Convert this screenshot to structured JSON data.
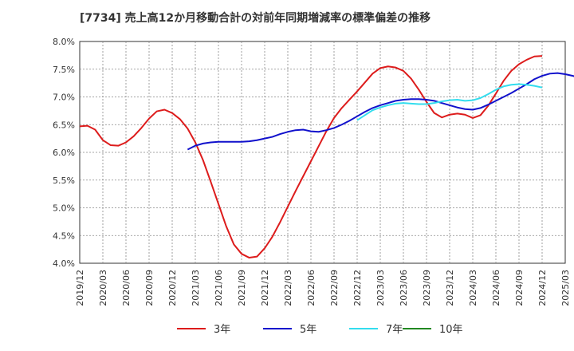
{
  "chart_data": {
    "type": "line",
    "title": "[7734]  売上高12か月移動合計の対前年同期増減率の標準偏差の推移",
    "ylim": [
      4.0,
      8.0
    ],
    "y_ticks": [
      "4.0%",
      "4.5%",
      "5.0%",
      "5.5%",
      "6.0%",
      "6.5%",
      "7.0%",
      "7.5%",
      "8.0%"
    ],
    "x_ticks": [
      "2019/12",
      "2020/03",
      "2020/06",
      "2020/09",
      "2020/12",
      "2021/03",
      "2021/06",
      "2021/09",
      "2021/12",
      "2022/03",
      "2022/06",
      "2022/09",
      "2022/12",
      "2023/03",
      "2023/06",
      "2023/09",
      "2023/12",
      "2024/03",
      "2024/06",
      "2024/09",
      "2024/12",
      "2025/03"
    ],
    "grid": true,
    "legend_position": "bottom",
    "series": [
      {
        "name": "3年",
        "color": "#dd1c1c",
        "start": "2019/12",
        "values": [
          6.47,
          6.48,
          6.41,
          6.22,
          6.13,
          6.12,
          6.18,
          6.29,
          6.44,
          6.61,
          6.74,
          6.77,
          6.71,
          6.6,
          6.43,
          6.18,
          5.86,
          5.47,
          5.07,
          4.67,
          4.34,
          4.17,
          4.1,
          4.12,
          4.27,
          4.48,
          4.74,
          5.02,
          5.3,
          5.57,
          5.84,
          6.11,
          6.38,
          6.62,
          6.8,
          6.95,
          7.1,
          7.26,
          7.42,
          7.52,
          7.55,
          7.53,
          7.47,
          7.33,
          7.13,
          6.91,
          6.71,
          6.63,
          6.68,
          6.7,
          6.68,
          6.62,
          6.67,
          6.84,
          7.06,
          7.29,
          7.47,
          7.59,
          7.67,
          7.73,
          7.74
        ]
      },
      {
        "name": "5年",
        "color": "#1111cc",
        "start": "2021/02",
        "values": [
          6.05,
          6.12,
          6.16,
          6.18,
          6.19,
          6.19,
          6.19,
          6.19,
          6.2,
          6.22,
          6.25,
          6.28,
          6.33,
          6.37,
          6.4,
          6.41,
          6.38,
          6.37,
          6.4,
          6.44,
          6.5,
          6.57,
          6.65,
          6.73,
          6.8,
          6.85,
          6.89,
          6.93,
          6.95,
          6.96,
          6.96,
          6.95,
          6.93,
          6.89,
          6.85,
          6.81,
          6.78,
          6.77,
          6.8,
          6.86,
          6.93,
          7.0,
          7.07,
          7.15,
          7.23,
          7.32,
          7.38,
          7.42,
          7.43,
          7.41,
          7.38,
          7.33,
          7.29
        ]
      },
      {
        "name": "7年",
        "color": "#33ddee",
        "start": "2022/12",
        "values": [
          6.58,
          6.67,
          6.76,
          6.81,
          6.85,
          6.88,
          6.89,
          6.88,
          6.87,
          6.87,
          6.89,
          6.92,
          6.94,
          6.95,
          6.93,
          6.94,
          6.98,
          7.05,
          7.13,
          7.19,
          7.22,
          7.23,
          7.22,
          7.2,
          7.17
        ]
      },
      {
        "name": "10年",
        "color": "#228822",
        "start": "2025/03",
        "values": []
      }
    ]
  }
}
